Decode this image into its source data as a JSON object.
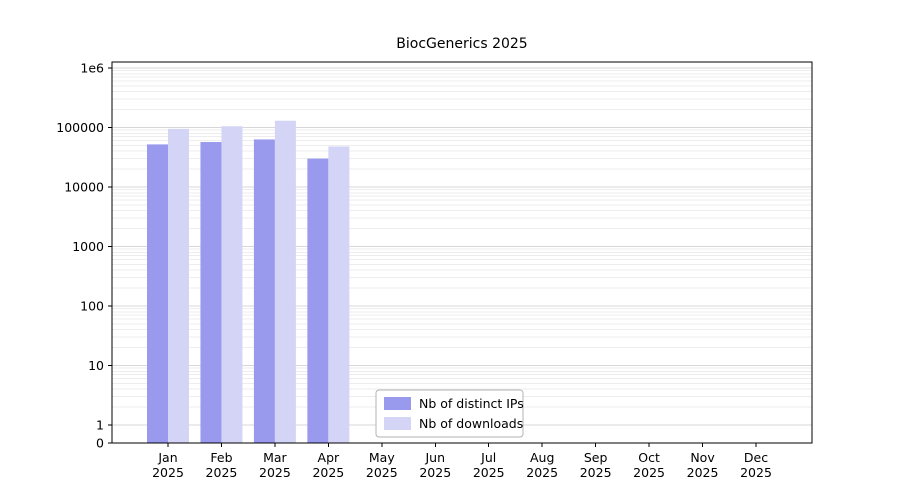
{
  "chart_data": {
    "type": "bar",
    "title": "BiocGenerics 2025",
    "year_label": "2025",
    "categories": [
      "Jan",
      "Feb",
      "Mar",
      "Apr",
      "May",
      "Jun",
      "Jul",
      "Aug",
      "Sep",
      "Oct",
      "Nov",
      "Dec"
    ],
    "series": [
      {
        "name": "Nb of distinct IPs",
        "color": "#9999ee",
        "values": [
          52000,
          57000,
          63000,
          30000,
          0,
          0,
          0,
          0,
          0,
          0,
          0,
          0
        ]
      },
      {
        "name": "Nb of downloads",
        "color": "#d4d4f7",
        "values": [
          95000,
          105000,
          130000,
          48000,
          0,
          0,
          0,
          0,
          0,
          0,
          0,
          0
        ]
      }
    ],
    "yscale": "log",
    "ylim": [
      0,
      1000000
    ],
    "yticks": [
      {
        "label": "0",
        "value": 0
      },
      {
        "label": "1",
        "value": 1
      },
      {
        "label": "10",
        "value": 10
      },
      {
        "label": "100",
        "value": 100
      },
      {
        "label": "1000",
        "value": 1000
      },
      {
        "label": "10000",
        "value": 10000
      },
      {
        "label": "100000",
        "value": 100000
      },
      {
        "label": "1e6",
        "value": 1000000
      }
    ],
    "grid": true,
    "legend": {
      "position": "lower center"
    },
    "colors": {
      "axis": "#000000",
      "major_grid": "#d7d7d7",
      "minor_grid": "#ededed",
      "legend_border": "#b3b3b3",
      "legend_bg": "#ffffff"
    }
  }
}
